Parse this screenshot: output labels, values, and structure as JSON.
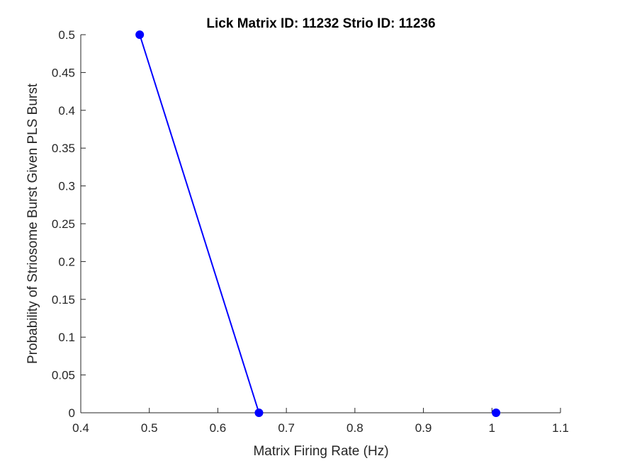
{
  "chart_data": {
    "type": "line",
    "title": "Lick Matrix ID: 11232 Strio ID: 11236",
    "xlabel": "Matrix Firing Rate (Hz)",
    "ylabel": "Probability of Striosome Burst Given PLS Burst",
    "xlim": [
      0.4,
      1.1
    ],
    "ylim": [
      0,
      0.5
    ],
    "xticks": [
      0.4,
      0.5,
      0.6,
      0.7,
      0.8,
      0.9,
      1,
      1.1
    ],
    "xtick_labels": [
      "0.4",
      "0.5",
      "0.6",
      "0.7",
      "0.8",
      "0.9",
      "1",
      "1.1"
    ],
    "yticks": [
      0,
      0.05,
      0.1,
      0.15,
      0.2,
      0.25,
      0.3,
      0.35,
      0.4,
      0.45,
      0.5
    ],
    "ytick_labels": [
      "0",
      "0.05",
      "0.1",
      "0.15",
      "0.2",
      "0.25",
      "0.3",
      "0.35",
      "0.4",
      "0.45",
      "0.5"
    ],
    "grid": false,
    "legend": false,
    "series": [
      {
        "color": "#0000ff",
        "marker": "circle",
        "line_segments": [
          [
            0,
            1
          ]
        ],
        "x": [
          0.486,
          0.66,
          1.006
        ],
        "y": [
          0.5,
          0,
          0
        ]
      }
    ]
  }
}
